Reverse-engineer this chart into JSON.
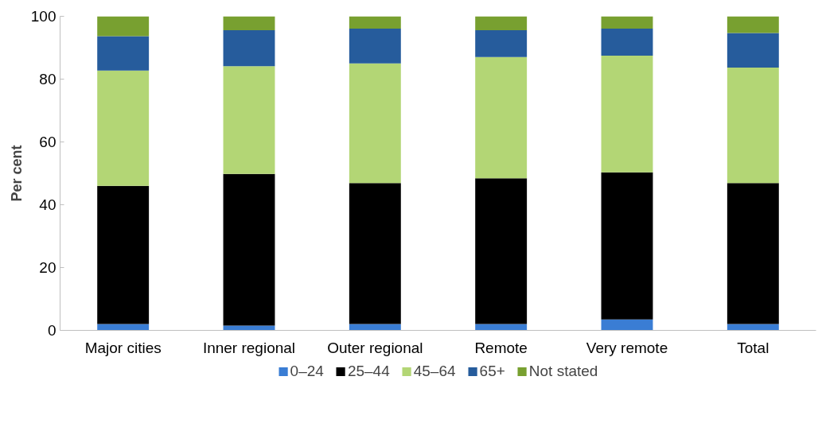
{
  "chart_data": {
    "type": "bar",
    "stacked": true,
    "ylabel": "Per cent",
    "categories": [
      "Major cities",
      "Inner regional",
      "Outer regional",
      "Remote",
      "Very remote",
      "Total"
    ],
    "series": [
      {
        "name": "0–24",
        "color": "#3a7dd4",
        "values": [
          2.0,
          1.5,
          2.0,
          2.0,
          3.5,
          2.0
        ]
      },
      {
        "name": "25–44",
        "color": "#000000",
        "values": [
          44.0,
          48.3,
          44.9,
          46.4,
          46.8,
          44.9
        ]
      },
      {
        "name": "45–64",
        "color": "#b3d675",
        "values": [
          36.7,
          34.3,
          38.1,
          38.6,
          37.2,
          36.8
        ]
      },
      {
        "name": "65+",
        "color": "#265c9c",
        "values": [
          11.0,
          11.5,
          11.1,
          8.6,
          8.6,
          11.0
        ]
      },
      {
        "name": "Not stated",
        "color": "#78a030",
        "values": [
          6.3,
          4.4,
          3.9,
          4.4,
          3.9,
          5.3
        ]
      }
    ],
    "ylim": [
      0,
      100
    ],
    "yticks": [
      0,
      20,
      40,
      60,
      80,
      100
    ],
    "grid": false,
    "legend": "bottom"
  }
}
